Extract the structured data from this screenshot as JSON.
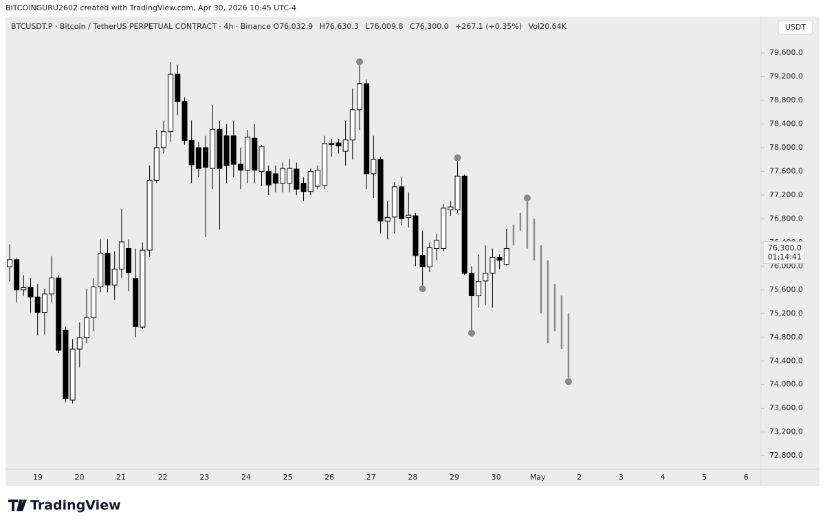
{
  "caption": "BITCOINGURU2602 created with TradingView.com, Apr 30, 2026 10:45 UTC-4",
  "logo": "TradingView",
  "chart_data": {
    "type": "candlestick",
    "title": "BTCUSDT.P · Bitcoin / TetherUS PERPETUAL CONTRACT · 4h · Binance",
    "ohlc_header": [
      {
        "key": "O",
        "value": "76,032.9"
      },
      {
        "key": "H",
        "value": "76,630.3"
      },
      {
        "key": "L",
        "value": "76,009.8"
      },
      {
        "key": "C",
        "value": "76,300.0"
      },
      {
        "key": "",
        "value": "+267.1 (+0.35%)"
      },
      {
        "key": "Vol",
        "value": "20.64K"
      }
    ],
    "currency": "USDT",
    "up_color": "#ffffff",
    "down_color": "#000000",
    "projection_color": "#8a8a8a",
    "candles": [
      {
        "open": 75990,
        "high": 76370,
        "low": 75740,
        "close": 76110
      },
      {
        "open": 76110,
        "high": 76140,
        "low": 75390,
        "close": 75600
      },
      {
        "open": 75600,
        "high": 75850,
        "low": 75500,
        "close": 75640
      },
      {
        "open": 75640,
        "high": 75800,
        "low": 75220,
        "close": 75480
      },
      {
        "open": 75480,
        "high": 75700,
        "low": 74830,
        "close": 75220
      },
      {
        "open": 75220,
        "high": 75620,
        "low": 74850,
        "close": 75530
      },
      {
        "open": 75530,
        "high": 76170,
        "low": 75390,
        "close": 75800
      },
      {
        "open": 75800,
        "high": 75850,
        "low": 74530,
        "close": 74580
      },
      {
        "open": 74920,
        "high": 74980,
        "low": 73700,
        "close": 73760
      },
      {
        "open": 73740,
        "high": 74770,
        "low": 73680,
        "close": 74600
      },
      {
        "open": 74600,
        "high": 75050,
        "low": 74290,
        "close": 74790
      },
      {
        "open": 74790,
        "high": 75620,
        "low": 74700,
        "close": 75130
      },
      {
        "open": 75130,
        "high": 75800,
        "low": 74900,
        "close": 75650
      },
      {
        "open": 75650,
        "high": 76450,
        "low": 75560,
        "close": 76220
      },
      {
        "open": 76220,
        "high": 76450,
        "low": 75560,
        "close": 75680
      },
      {
        "open": 75680,
        "high": 76250,
        "low": 75430,
        "close": 75950
      },
      {
        "open": 75950,
        "high": 76970,
        "low": 75800,
        "close": 76410
      },
      {
        "open": 76300,
        "high": 76450,
        "low": 75580,
        "close": 75890
      },
      {
        "open": 75790,
        "high": 76300,
        "low": 74800,
        "close": 74980
      },
      {
        "open": 74970,
        "high": 76400,
        "low": 74940,
        "close": 76270
      },
      {
        "open": 76270,
        "high": 77700,
        "low": 76150,
        "close": 77450
      },
      {
        "open": 77450,
        "high": 78300,
        "low": 77400,
        "close": 78000
      },
      {
        "open": 78000,
        "high": 78450,
        "low": 77900,
        "close": 78270
      },
      {
        "open": 78270,
        "high": 79450,
        "low": 78100,
        "close": 79240
      },
      {
        "open": 79240,
        "high": 79400,
        "low": 78550,
        "close": 78780
      },
      {
        "open": 78780,
        "high": 78850,
        "low": 78050,
        "close": 78120
      },
      {
        "open": 78120,
        "high": 78460,
        "low": 77400,
        "close": 77710
      },
      {
        "open": 78000,
        "high": 78100,
        "low": 77500,
        "close": 77650
      },
      {
        "open": 78000,
        "high": 78200,
        "low": 76490,
        "close": 77670
      },
      {
        "open": 77650,
        "high": 78720,
        "low": 77300,
        "close": 78310
      },
      {
        "open": 78310,
        "high": 78450,
        "low": 76620,
        "close": 77650
      },
      {
        "open": 78200,
        "high": 78400,
        "low": 77400,
        "close": 77700
      },
      {
        "open": 78200,
        "high": 78450,
        "low": 77500,
        "close": 77720
      },
      {
        "open": 77720,
        "high": 78000,
        "low": 77300,
        "close": 77620
      },
      {
        "open": 77620,
        "high": 78300,
        "low": 77400,
        "close": 78180
      },
      {
        "open": 78160,
        "high": 78400,
        "low": 77400,
        "close": 77620
      },
      {
        "open": 77600,
        "high": 78050,
        "low": 77350,
        "close": 78020
      },
      {
        "open": 77600,
        "high": 77700,
        "low": 77200,
        "close": 77370
      },
      {
        "open": 77560,
        "high": 77700,
        "low": 77250,
        "close": 77400
      },
      {
        "open": 77400,
        "high": 77750,
        "low": 77250,
        "close": 77650
      },
      {
        "open": 77400,
        "high": 77800,
        "low": 77250,
        "close": 77650
      },
      {
        "open": 77640,
        "high": 77750,
        "low": 77200,
        "close": 77300
      },
      {
        "open": 77400,
        "high": 77500,
        "low": 77100,
        "close": 77260
      },
      {
        "open": 77260,
        "high": 77650,
        "low": 77200,
        "close": 77600
      },
      {
        "open": 77350,
        "high": 77700,
        "low": 77300,
        "close": 77620
      },
      {
        "open": 77360,
        "high": 78200,
        "low": 77300,
        "close": 78070
      },
      {
        "open": 78070,
        "high": 78150,
        "low": 77850,
        "close": 78050
      },
      {
        "open": 78080,
        "high": 78150,
        "low": 77900,
        "close": 78030
      },
      {
        "open": 77940,
        "high": 78450,
        "low": 77700,
        "close": 78130
      },
      {
        "open": 78130,
        "high": 79000,
        "low": 77800,
        "close": 78640
      },
      {
        "open": 78640,
        "high": 79450,
        "low": 78300,
        "close": 79080,
        "dot": "high"
      },
      {
        "open": 79080,
        "high": 79150,
        "low": 77300,
        "close": 77560
      },
      {
        "open": 77560,
        "high": 78200,
        "low": 77150,
        "close": 77800
      },
      {
        "open": 77800,
        "high": 77850,
        "low": 76550,
        "close": 76760
      },
      {
        "open": 76760,
        "high": 77100,
        "low": 76450,
        "close": 76820
      },
      {
        "open": 76830,
        "high": 77420,
        "low": 76550,
        "close": 77340
      },
      {
        "open": 77340,
        "high": 77500,
        "low": 76700,
        "close": 76800
      },
      {
        "open": 76820,
        "high": 77250,
        "low": 76650,
        "close": 76860
      },
      {
        "open": 76850,
        "high": 76900,
        "low": 76000,
        "close": 76180
      },
      {
        "open": 76180,
        "high": 76600,
        "low": 75620,
        "close": 75990,
        "dot": "low"
      },
      {
        "open": 75990,
        "high": 76400,
        "low": 75900,
        "close": 76310
      },
      {
        "open": 76300,
        "high": 76550,
        "low": 76100,
        "close": 76440
      },
      {
        "open": 76300,
        "high": 77050,
        "low": 76250,
        "close": 76980
      },
      {
        "open": 76950,
        "high": 77100,
        "low": 76850,
        "close": 77000
      },
      {
        "open": 76950,
        "high": 77830,
        "low": 76900,
        "close": 77520,
        "dot": "high"
      },
      {
        "open": 77520,
        "high": 77550,
        "low": 75850,
        "close": 75880
      },
      {
        "open": 75880,
        "high": 76000,
        "low": 74870,
        "close": 75500,
        "dot": "low"
      },
      {
        "open": 75500,
        "high": 76200,
        "low": 75300,
        "close": 75740
      },
      {
        "open": 75750,
        "high": 76350,
        "low": 75350,
        "close": 75880
      },
      {
        "open": 75880,
        "high": 76300,
        "low": 75300,
        "close": 76150
      },
      {
        "open": 76150,
        "high": 76200,
        "low": 75950,
        "close": 76100
      },
      {
        "open": 76032.9,
        "high": 76630.3,
        "low": 76009.8,
        "close": 76300
      }
    ],
    "projection": [
      {
        "low": 76350,
        "high": 76700
      },
      {
        "low": 76600,
        "high": 76900
      },
      {
        "low": 76300,
        "high": 77150,
        "dot": "high"
      },
      {
        "low": 76100,
        "high": 76800
      },
      {
        "low": 75200,
        "high": 76350
      },
      {
        "low": 74700,
        "high": 76100
      },
      {
        "low": 74900,
        "high": 75700
      },
      {
        "low": 74600,
        "high": 75500
      },
      {
        "low": 74050,
        "high": 75200,
        "dot": "low"
      }
    ],
    "x_labels": [
      "19",
      "20",
      "21",
      "22",
      "23",
      "24",
      "25",
      "26",
      "27",
      "28",
      "29",
      "30",
      "May",
      "2",
      "3",
      "4",
      "5",
      "6"
    ],
    "ylim": [
      72570,
      80215
    ],
    "yticks": [
      {
        "value": 72800,
        "label": "72,800.0"
      },
      {
        "value": 73200,
        "label": "73,200.0"
      },
      {
        "value": 73600,
        "label": "73,600.0"
      },
      {
        "value": 74000,
        "label": "74,000.0"
      },
      {
        "value": 74400,
        "label": "74,400.0"
      },
      {
        "value": 74800,
        "label": "74,800.0"
      },
      {
        "value": 75200,
        "label": "75,200.0"
      },
      {
        "value": 75600,
        "label": "75,600.0"
      },
      {
        "value": 76000,
        "label": "76,000.0"
      },
      {
        "value": 76400,
        "label": "76,400.0"
      },
      {
        "value": 76800,
        "label": "76,800.0"
      },
      {
        "value": 77200,
        "label": "77,200.0"
      },
      {
        "value": 77600,
        "label": "77,600.0"
      },
      {
        "value": 78000,
        "label": "78,000.0"
      },
      {
        "value": 78400,
        "label": "78,400.0"
      },
      {
        "value": 78800,
        "label": "78,800.0"
      },
      {
        "value": 79200,
        "label": "79,200.0"
      },
      {
        "value": 79600,
        "label": "79,600.0"
      }
    ],
    "last_price": {
      "value": 76300,
      "label": "76,300.0"
    },
    "countdown": "01:14:41"
  }
}
